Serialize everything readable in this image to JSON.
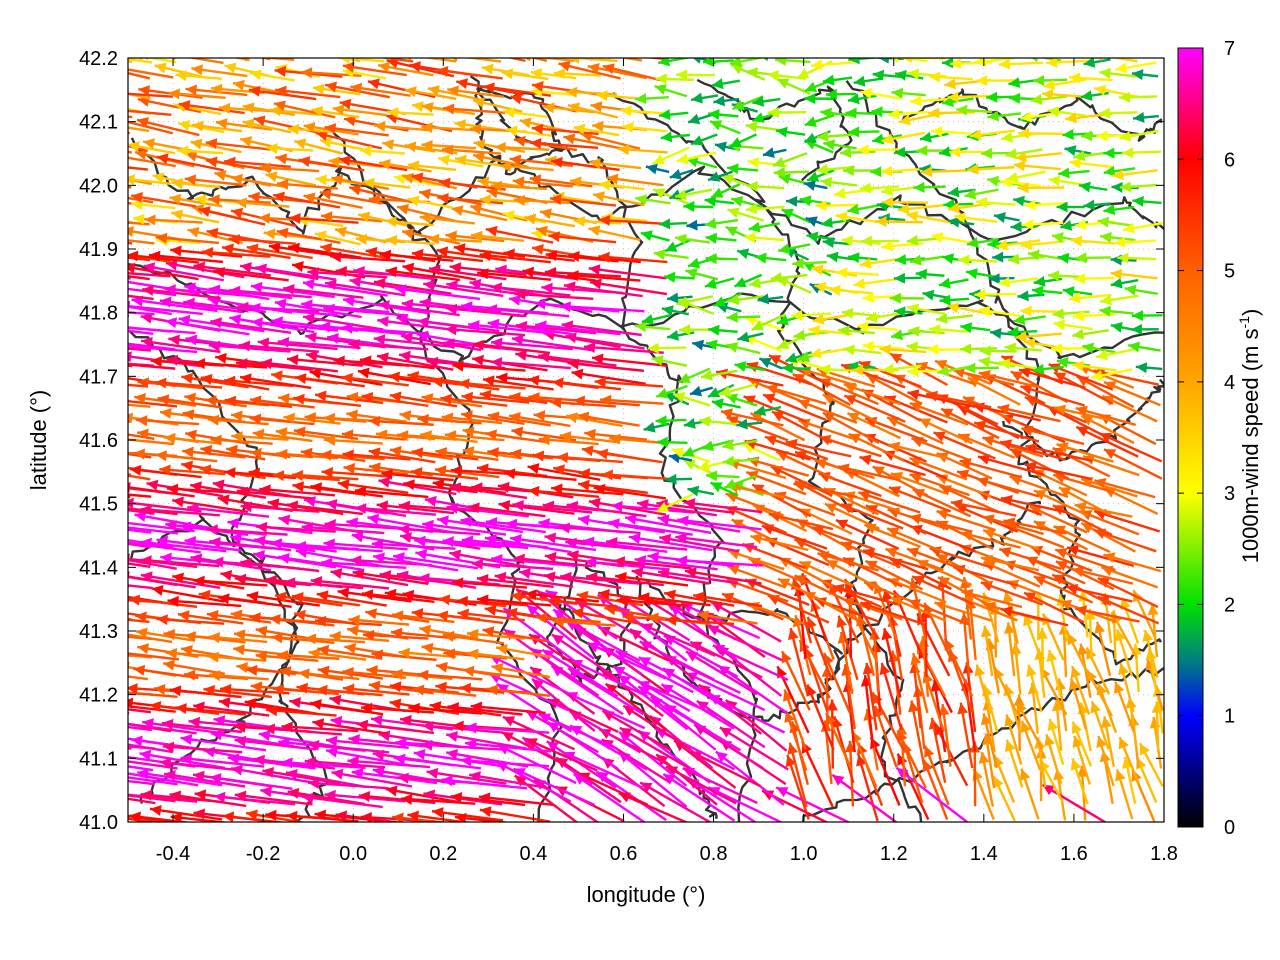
{
  "chart_data": {
    "type": "vector-field",
    "xlabel": "longitude (°)",
    "ylabel": "latitude (°)",
    "xlim": [
      -0.5,
      1.8
    ],
    "ylim": [
      41.0,
      42.2
    ],
    "x_ticks": [
      "-0.4",
      "-0.2",
      "0.0",
      "0.2",
      "0.4",
      "0.6",
      "0.8",
      "1.0",
      "1.2",
      "1.4",
      "1.6",
      "1.8"
    ],
    "y_ticks": [
      "41.0",
      "41.1",
      "41.2",
      "41.3",
      "41.4",
      "41.5",
      "41.6",
      "41.7",
      "41.8",
      "41.9",
      "42.0",
      "42.1",
      "42.2"
    ],
    "grid": "dotted",
    "colorbar": {
      "label_main": "1000m-wind speed (m s",
      "label_sup": "-1",
      "label_end": ")",
      "range": [
        0,
        7
      ],
      "ticks": [
        "0",
        "1",
        "2",
        "3",
        "4",
        "5",
        "6",
        "7"
      ],
      "placement": "right",
      "stops": [
        {
          "value": 0,
          "color": "#000000"
        },
        {
          "value": 1,
          "color": "#0000ff"
        },
        {
          "value": 1.5,
          "color": "#008080"
        },
        {
          "value": 2,
          "color": "#00e000"
        },
        {
          "value": 3,
          "color": "#ffff00"
        },
        {
          "value": 4,
          "color": "#ffa500"
        },
        {
          "value": 5,
          "color": "#ff6000"
        },
        {
          "value": 6,
          "color": "#ff0000"
        },
        {
          "value": 7,
          "color": "#ff00ff"
        }
      ]
    },
    "wind_field_regions": [
      {
        "lon": [
          -0.5,
          0.6
        ],
        "lat": [
          41.0,
          41.9
        ],
        "direction": "westward, slightly south",
        "speed_ms": 6.5
      },
      {
        "lon": [
          -0.5,
          0.8
        ],
        "lat": [
          41.9,
          42.2
        ],
        "direction": "westward, slightly north",
        "speed_ms": 4.5
      },
      {
        "lon": [
          0.7,
          1.1
        ],
        "lat": [
          41.5,
          42.2
        ],
        "direction": "westward, variable",
        "speed_ms": 2.0
      },
      {
        "lon": [
          1.1,
          1.8
        ],
        "lat": [
          41.7,
          42.2
        ],
        "direction": "westward",
        "speed_ms": 2.5
      },
      {
        "lon": [
          0.9,
          1.8
        ],
        "lat": [
          41.3,
          41.7
        ],
        "direction": "west-northwest",
        "speed_ms": 5.0
      },
      {
        "lon": [
          1.0,
          1.5
        ],
        "lat": [
          41.0,
          41.3
        ],
        "direction": "north",
        "speed_ms": 5.0
      },
      {
        "lon": [
          1.4,
          1.8
        ],
        "lat": [
          41.0,
          41.3
        ],
        "direction": "north",
        "speed_ms": 3.5
      }
    ],
    "contours": "terrain elevation isolines (dark grey)"
  }
}
